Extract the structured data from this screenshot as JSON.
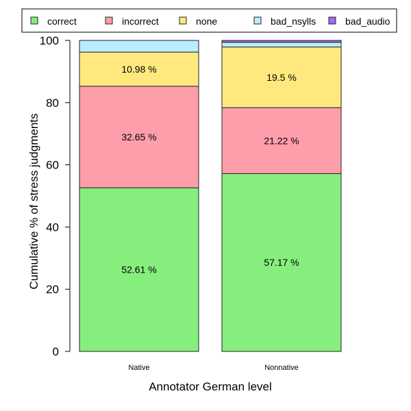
{
  "chart_data": {
    "type": "bar",
    "stacked": true,
    "categories": [
      "Native",
      "Nonnative"
    ],
    "series": [
      {
        "name": "correct",
        "color": "#86EE7D",
        "values": [
          52.61,
          57.17
        ],
        "labels": [
          "52.61 %",
          "57.17 %"
        ]
      },
      {
        "name": "incorrect",
        "color": "#FF9EAB",
        "values": [
          32.65,
          21.22
        ],
        "labels": [
          "32.65 %",
          "21.22 %"
        ]
      },
      {
        "name": "none",
        "color": "#FFE97F",
        "values": [
          10.98,
          19.5
        ],
        "labels": [
          "10.98 %",
          "19.5 %"
        ]
      },
      {
        "name": "bad_nsylls",
        "color": "#B8ECFF",
        "values": [
          3.76,
          1.51
        ],
        "labels": [
          "",
          ""
        ]
      },
      {
        "name": "bad_audio",
        "color": "#9C6EF5",
        "values": [
          0.0,
          0.6
        ],
        "labels": [
          "",
          ""
        ]
      }
    ],
    "xlabel": "Annotator German level",
    "ylabel": "Cumulative % of stress judgments",
    "ylim": [
      0,
      100
    ],
    "yticks": [
      0,
      20,
      40,
      60,
      80,
      100
    ],
    "legend": "top",
    "grid": false
  }
}
